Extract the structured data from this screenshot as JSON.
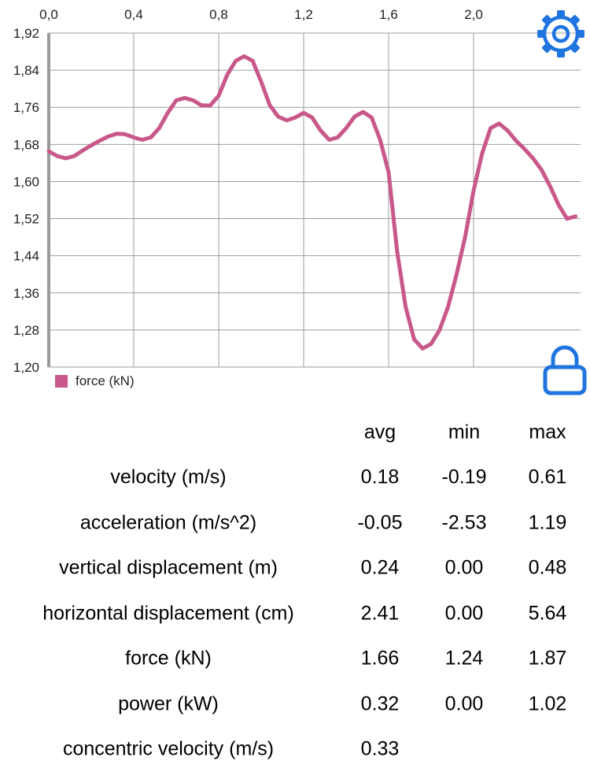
{
  "colors": {
    "series": "#c9588a",
    "accent": "#1f74e0",
    "grid": "#9e9e9e",
    "axis": "#9a9a9a"
  },
  "toolbar": {
    "settings_icon": "gear-icon",
    "lock_icon": "lock-icon"
  },
  "chart_data": {
    "type": "line",
    "x_axis_position": "top",
    "xlim": [
      0.0,
      2.5
    ],
    "ylim": [
      1.2,
      1.92
    ],
    "x_ticks": [
      0.0,
      0.4,
      0.8,
      1.2,
      1.6,
      2.0
    ],
    "x_tick_labels": [
      "0,0",
      "0,4",
      "0,8",
      "1,2",
      "1,6",
      "2,0"
    ],
    "y_ticks": [
      1.2,
      1.28,
      1.36,
      1.44,
      1.52,
      1.6,
      1.68,
      1.76,
      1.84,
      1.92
    ],
    "y_tick_labels": [
      "1,20",
      "1,28",
      "1,36",
      "1,44",
      "1,52",
      "1,60",
      "1,68",
      "1,76",
      "1,84",
      "1,92"
    ],
    "grid": true,
    "legend_position": "bottom-left",
    "series": [
      {
        "name": "force (kN)",
        "x": [
          0.0,
          0.04,
          0.08,
          0.12,
          0.16,
          0.2,
          0.24,
          0.28,
          0.32,
          0.36,
          0.4,
          0.44,
          0.48,
          0.52,
          0.56,
          0.6,
          0.64,
          0.68,
          0.72,
          0.76,
          0.8,
          0.84,
          0.88,
          0.92,
          0.96,
          1.0,
          1.04,
          1.08,
          1.12,
          1.16,
          1.2,
          1.24,
          1.28,
          1.32,
          1.36,
          1.4,
          1.44,
          1.48,
          1.52,
          1.56,
          1.6,
          1.64,
          1.68,
          1.72,
          1.76,
          1.8,
          1.84,
          1.88,
          1.92,
          1.96,
          2.0,
          2.04,
          2.08,
          2.12,
          2.16,
          2.2,
          2.24,
          2.28,
          2.32,
          2.36,
          2.4,
          2.44,
          2.48
        ],
        "y": [
          1.665,
          1.655,
          1.65,
          1.655,
          1.667,
          1.678,
          1.688,
          1.697,
          1.703,
          1.702,
          1.695,
          1.69,
          1.695,
          1.715,
          1.748,
          1.775,
          1.78,
          1.775,
          1.764,
          1.764,
          1.785,
          1.83,
          1.86,
          1.87,
          1.86,
          1.815,
          1.765,
          1.74,
          1.732,
          1.738,
          1.748,
          1.738,
          1.71,
          1.69,
          1.695,
          1.715,
          1.74,
          1.75,
          1.738,
          1.69,
          1.62,
          1.45,
          1.33,
          1.26,
          1.24,
          1.25,
          1.28,
          1.33,
          1.4,
          1.48,
          1.58,
          1.66,
          1.715,
          1.725,
          1.71,
          1.688,
          1.67,
          1.65,
          1.625,
          1.59,
          1.55,
          1.52,
          1.525
        ]
      }
    ]
  },
  "stats": {
    "headers": {
      "avg": "avg",
      "min": "min",
      "max": "max"
    },
    "rows": [
      {
        "label": "velocity (m/s)",
        "avg": "0.18",
        "min": "-0.19",
        "max": "0.61"
      },
      {
        "label": "acceleration (m/s^2)",
        "avg": "-0.05",
        "min": "-2.53",
        "max": "1.19"
      },
      {
        "label": "vertical displacement (m)",
        "avg": "0.24",
        "min": "0.00",
        "max": "0.48"
      },
      {
        "label": "horizontal displacement (cm)",
        "avg": "2.41",
        "min": "0.00",
        "max": "5.64"
      },
      {
        "label": "force (kN)",
        "avg": "1.66",
        "min": "1.24",
        "max": "1.87"
      },
      {
        "label": "power (kW)",
        "avg": "0.32",
        "min": "0.00",
        "max": "1.02"
      },
      {
        "label": "concentric velocity (m/s)",
        "avg": "0.33",
        "min": "",
        "max": ""
      }
    ]
  }
}
